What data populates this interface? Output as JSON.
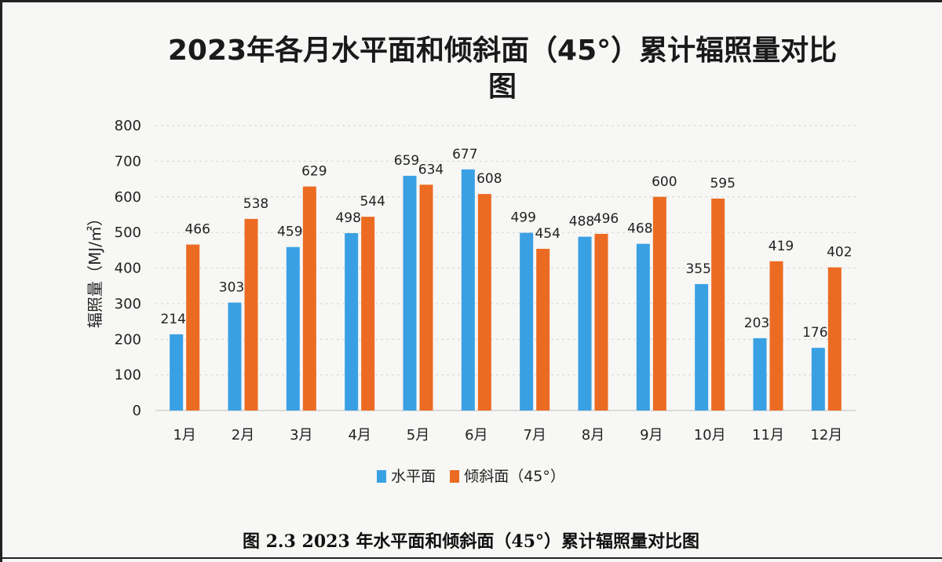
{
  "chart_data": {
    "type": "bar",
    "title": "2023年各月水平面和倾斜面（45°）累计辐照量对比图",
    "ylabel": "辐照量（MJ/㎡）",
    "xlabel": "",
    "ylim": [
      0,
      800
    ],
    "yticks": [
      0,
      100,
      200,
      300,
      400,
      500,
      600,
      700,
      800
    ],
    "grid": true,
    "legend_position": "bottom",
    "categories": [
      "1月",
      "2月",
      "3月",
      "4月",
      "5月",
      "6月",
      "7月",
      "8月",
      "9月",
      "10月",
      "11月",
      "12月"
    ],
    "series": [
      {
        "name": "水平面",
        "color": "#3aa0e4",
        "values": [
          214,
          303,
          459,
          498,
          659,
          677,
          499,
          488,
          468,
          355,
          203,
          176
        ]
      },
      {
        "name": "倾斜面（45°）",
        "color": "#ec6b22",
        "values": [
          466,
          538,
          629,
          544,
          634,
          608,
          454,
          496,
          600,
          595,
          419,
          402
        ]
      }
    ]
  },
  "caption": "图 2.3 2023 年水平面和倾斜面（45°）累计辐照量对比图"
}
